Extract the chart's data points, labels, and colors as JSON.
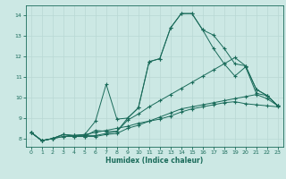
{
  "xlabel": "Humidex (Indice chaleur)",
  "xlim": [
    -0.5,
    23.5
  ],
  "ylim": [
    7.6,
    14.5
  ],
  "xticks": [
    0,
    1,
    2,
    3,
    4,
    5,
    6,
    7,
    8,
    9,
    10,
    11,
    12,
    13,
    14,
    15,
    16,
    17,
    18,
    19,
    20,
    21,
    22,
    23
  ],
  "yticks": [
    8,
    9,
    10,
    11,
    12,
    13,
    14
  ],
  "bg_color": "#cce8e4",
  "line_color": "#1a6b5a",
  "grid_color": "#b8d8d4",
  "lines": [
    {
      "points": [
        [
          0,
          8.3
        ],
        [
          1,
          7.9
        ],
        [
          2,
          8.0
        ],
        [
          3,
          8.2
        ],
        [
          4,
          8.1
        ],
        [
          5,
          8.1
        ],
        [
          6,
          8.4
        ],
        [
          7,
          8.35
        ],
        [
          8,
          8.35
        ],
        [
          9,
          9.0
        ],
        [
          10,
          9.5
        ],
        [
          11,
          11.75
        ],
        [
          12,
          11.9
        ],
        [
          13,
          13.4
        ],
        [
          14,
          14.1
        ],
        [
          15,
          14.1
        ],
        [
          16,
          13.3
        ],
        [
          17,
          13.05
        ],
        [
          18,
          12.4
        ],
        [
          19,
          11.65
        ],
        [
          20,
          11.55
        ],
        [
          21,
          10.4
        ],
        [
          22,
          10.1
        ],
        [
          23,
          9.6
        ]
      ]
    },
    {
      "points": [
        [
          0,
          8.3
        ],
        [
          1,
          7.9
        ],
        [
          2,
          8.0
        ],
        [
          3,
          8.2
        ],
        [
          4,
          8.15
        ],
        [
          5,
          8.2
        ],
        [
          6,
          8.85
        ],
        [
          7,
          10.65
        ],
        [
          8,
          8.95
        ],
        [
          9,
          9.0
        ],
        [
          10,
          9.5
        ],
        [
          11,
          11.75
        ],
        [
          12,
          11.9
        ],
        [
          13,
          13.4
        ],
        [
          14,
          14.1
        ],
        [
          15,
          14.1
        ],
        [
          16,
          13.3
        ],
        [
          17,
          12.4
        ],
        [
          18,
          11.65
        ],
        [
          19,
          11.05
        ],
        [
          20,
          11.5
        ],
        [
          21,
          10.2
        ],
        [
          22,
          10.1
        ],
        [
          23,
          9.6
        ]
      ]
    },
    {
      "points": [
        [
          0,
          8.3
        ],
        [
          1,
          7.9
        ],
        [
          2,
          8.0
        ],
        [
          3,
          8.2
        ],
        [
          4,
          8.15
        ],
        [
          5,
          8.15
        ],
        [
          6,
          8.15
        ],
        [
          7,
          8.25
        ],
        [
          8,
          8.35
        ],
        [
          9,
          8.9
        ],
        [
          10,
          9.2
        ],
        [
          11,
          9.55
        ],
        [
          12,
          9.85
        ],
        [
          13,
          10.15
        ],
        [
          14,
          10.45
        ],
        [
          15,
          10.75
        ],
        [
          16,
          11.05
        ],
        [
          17,
          11.35
        ],
        [
          18,
          11.65
        ],
        [
          19,
          11.95
        ],
        [
          20,
          11.55
        ],
        [
          21,
          10.4
        ],
        [
          22,
          10.1
        ],
        [
          23,
          9.6
        ]
      ]
    },
    {
      "points": [
        [
          0,
          8.3
        ],
        [
          1,
          7.9
        ],
        [
          2,
          8.0
        ],
        [
          3,
          8.1
        ],
        [
          4,
          8.1
        ],
        [
          5,
          8.1
        ],
        [
          6,
          8.1
        ],
        [
          7,
          8.2
        ],
        [
          8,
          8.25
        ],
        [
          9,
          8.5
        ],
        [
          10,
          8.65
        ],
        [
          11,
          8.85
        ],
        [
          12,
          9.05
        ],
        [
          13,
          9.25
        ],
        [
          14,
          9.45
        ],
        [
          15,
          9.55
        ],
        [
          16,
          9.65
        ],
        [
          17,
          9.75
        ],
        [
          18,
          9.85
        ],
        [
          19,
          9.95
        ],
        [
          20,
          10.05
        ],
        [
          21,
          10.15
        ],
        [
          22,
          9.95
        ],
        [
          23,
          9.6
        ]
      ]
    },
    {
      "points": [
        [
          0,
          8.3
        ],
        [
          1,
          7.9
        ],
        [
          2,
          8.0
        ],
        [
          3,
          8.1
        ],
        [
          4,
          8.15
        ],
        [
          5,
          8.2
        ],
        [
          6,
          8.3
        ],
        [
          7,
          8.4
        ],
        [
          8,
          8.5
        ],
        [
          9,
          8.6
        ],
        [
          10,
          8.75
        ],
        [
          11,
          8.85
        ],
        [
          12,
          8.95
        ],
        [
          13,
          9.1
        ],
        [
          14,
          9.3
        ],
        [
          15,
          9.45
        ],
        [
          16,
          9.55
        ],
        [
          17,
          9.65
        ],
        [
          18,
          9.75
        ],
        [
          19,
          9.8
        ],
        [
          20,
          9.7
        ],
        [
          21,
          9.65
        ],
        [
          22,
          9.6
        ],
        [
          23,
          9.55
        ]
      ]
    }
  ]
}
